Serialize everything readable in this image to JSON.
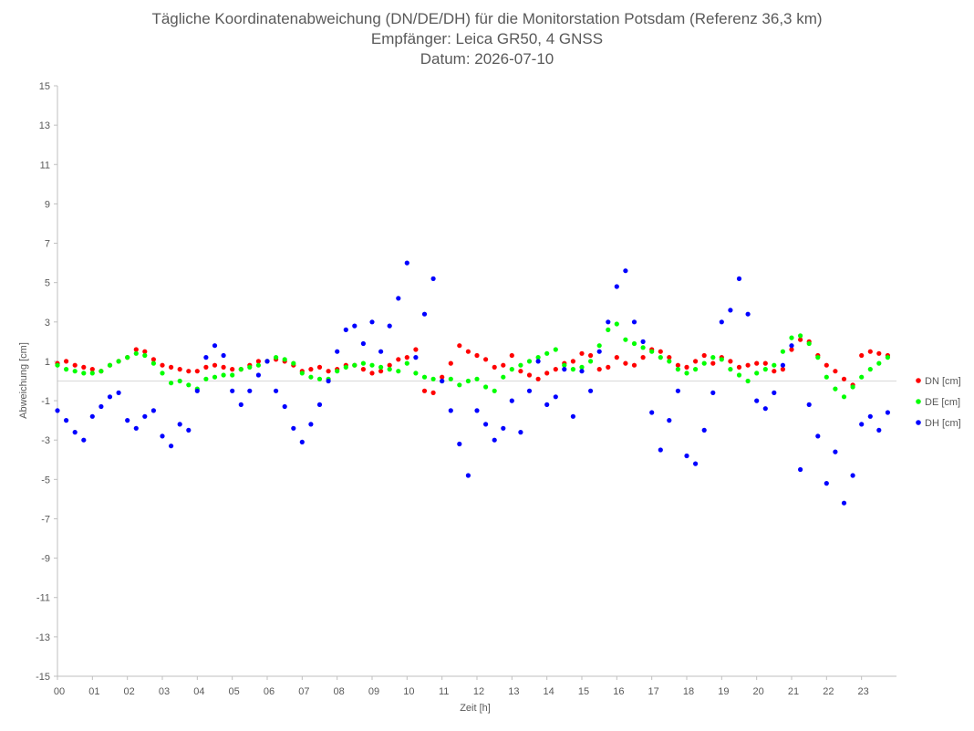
{
  "chart_data": {
    "type": "scatter",
    "title": [
      "Tägliche Koordinatenabweichung (DN/DE/DH) für die Monitorstation Potsdam (Referenz 36,3 km)",
      "Empfänger: Leica GR50, 4 GNSS",
      "Datum: 2026-07-10"
    ],
    "xlabel": "Zeit [h]",
    "ylabel": "Abweichung [cm]",
    "xlim": [
      0,
      24
    ],
    "ylim": [
      -15,
      15
    ],
    "x_tick_labels": [
      "00",
      "01",
      "02",
      "03",
      "04",
      "05",
      "06",
      "07",
      "08",
      "09",
      "10",
      "11",
      "12",
      "13",
      "14",
      "15",
      "16",
      "17",
      "18",
      "19",
      "20",
      "21",
      "22",
      "23"
    ],
    "y_tick_labels": [
      "15",
      "13",
      "11",
      "9",
      "7",
      "5",
      "3",
      "1",
      "-1",
      "-3",
      "-5",
      "-7",
      "-9",
      "-11",
      "-13",
      "-15"
    ],
    "grid": false,
    "legend_position": "right",
    "series": [
      {
        "name": "DN [cm]",
        "color": "#ff0000",
        "x": [
          0.0,
          0.25,
          0.5,
          0.75,
          1.0,
          1.25,
          1.5,
          1.75,
          2.0,
          2.25,
          2.5,
          2.75,
          3.0,
          3.25,
          3.5,
          3.75,
          4.0,
          4.25,
          4.5,
          4.75,
          5.0,
          5.25,
          5.5,
          5.75,
          6.0,
          6.25,
          6.5,
          6.75,
          7.0,
          7.25,
          7.5,
          7.75,
          8.0,
          8.25,
          8.5,
          8.75,
          9.0,
          9.25,
          9.5,
          9.75,
          10.0,
          10.25,
          10.5,
          10.75,
          11.0,
          11.25,
          11.5,
          11.75,
          12.0,
          12.25,
          12.5,
          12.75,
          13.0,
          13.25,
          13.5,
          13.75,
          14.0,
          14.25,
          14.5,
          14.75,
          15.0,
          15.25,
          15.5,
          15.75,
          16.0,
          16.25,
          16.5,
          16.75,
          17.0,
          17.25,
          17.5,
          17.75,
          18.0,
          18.25,
          18.5,
          18.75,
          19.0,
          19.25,
          19.5,
          19.75,
          20.0,
          20.25,
          20.5,
          20.75,
          21.0,
          21.25,
          21.5,
          21.75,
          22.0,
          22.25,
          22.5,
          22.75,
          23.0,
          23.25,
          23.5,
          23.75
        ],
        "values": [
          0.9,
          1.0,
          0.8,
          0.7,
          0.6,
          0.5,
          0.8,
          1.0,
          1.2,
          1.6,
          1.5,
          1.1,
          0.8,
          0.7,
          0.6,
          0.5,
          0.5,
          0.7,
          0.8,
          0.7,
          0.6,
          0.6,
          0.8,
          1.0,
          1.0,
          1.1,
          1.0,
          0.8,
          0.5,
          0.6,
          0.7,
          0.5,
          0.6,
          0.8,
          0.8,
          0.6,
          0.4,
          0.5,
          0.8,
          1.1,
          1.2,
          1.6,
          -0.5,
          -0.6,
          0.2,
          0.9,
          1.8,
          1.5,
          1.3,
          1.1,
          0.7,
          0.8,
          1.3,
          0.5,
          0.3,
          0.1,
          0.4,
          0.6,
          0.9,
          1.0,
          1.4,
          1.3,
          0.6,
          0.7,
          1.2,
          0.9,
          0.8,
          1.2,
          1.6,
          1.5,
          1.2,
          0.8,
          0.7,
          1.0,
          1.3,
          0.9,
          1.2,
          1.0,
          0.7,
          0.8,
          0.9,
          0.9,
          0.5,
          0.6,
          1.6,
          2.1,
          2.0,
          1.3,
          0.8,
          0.5,
          0.1,
          -0.2,
          1.3,
          1.5,
          1.4,
          1.3
        ]
      },
      {
        "name": "DE [cm]",
        "color": "#00ff00",
        "x": [
          0.0,
          0.25,
          0.5,
          0.75,
          1.0,
          1.25,
          1.5,
          1.75,
          2.0,
          2.25,
          2.5,
          2.75,
          3.0,
          3.25,
          3.5,
          3.75,
          4.0,
          4.25,
          4.5,
          4.75,
          5.0,
          5.25,
          5.5,
          5.75,
          6.0,
          6.25,
          6.5,
          6.75,
          7.0,
          7.25,
          7.5,
          7.75,
          8.0,
          8.25,
          8.5,
          8.75,
          9.0,
          9.25,
          9.5,
          9.75,
          10.0,
          10.25,
          10.5,
          10.75,
          11.0,
          11.25,
          11.5,
          11.75,
          12.0,
          12.25,
          12.5,
          12.75,
          13.0,
          13.25,
          13.5,
          13.75,
          14.0,
          14.25,
          14.5,
          14.75,
          15.0,
          15.25,
          15.5,
          15.75,
          16.0,
          16.25,
          16.5,
          16.75,
          17.0,
          17.25,
          17.5,
          17.75,
          18.0,
          18.25,
          18.5,
          18.75,
          19.0,
          19.25,
          19.5,
          19.75,
          20.0,
          20.25,
          20.5,
          20.75,
          21.0,
          21.25,
          21.5,
          21.75,
          22.0,
          22.25,
          22.5,
          22.75,
          23.0,
          23.25,
          23.5,
          23.75
        ],
        "values": [
          0.8,
          0.6,
          0.5,
          0.4,
          0.4,
          0.5,
          0.8,
          1.0,
          1.2,
          1.4,
          1.3,
          0.9,
          0.4,
          -0.1,
          0.0,
          -0.2,
          -0.4,
          0.1,
          0.2,
          0.3,
          0.3,
          0.6,
          0.7,
          0.8,
          1.0,
          1.2,
          1.1,
          0.9,
          0.4,
          0.2,
          0.1,
          0.1,
          0.5,
          0.7,
          0.8,
          0.9,
          0.8,
          0.7,
          0.6,
          0.5,
          0.9,
          0.4,
          0.2,
          0.1,
          0.0,
          0.1,
          -0.2,
          0.0,
          0.1,
          -0.3,
          -0.5,
          0.2,
          0.6,
          0.8,
          1.0,
          1.2,
          1.4,
          1.6,
          0.8,
          0.6,
          0.7,
          1.0,
          1.8,
          2.6,
          2.9,
          2.1,
          1.9,
          1.7,
          1.5,
          1.2,
          1.0,
          0.6,
          0.4,
          0.6,
          0.9,
          1.2,
          1.1,
          0.6,
          0.3,
          0.0,
          0.4,
          0.6,
          0.8,
          1.5,
          2.2,
          2.3,
          1.9,
          1.2,
          0.2,
          -0.4,
          -0.8,
          -0.3,
          0.2,
          0.6,
          0.9,
          1.2
        ]
      },
      {
        "name": "DH [cm]",
        "color": "#0000ff",
        "x": [
          0.0,
          0.25,
          0.5,
          0.75,
          1.0,
          1.25,
          1.5,
          1.75,
          2.0,
          2.25,
          2.5,
          2.75,
          3.0,
          3.25,
          3.5,
          3.75,
          4.0,
          4.25,
          4.5,
          4.75,
          5.0,
          5.25,
          5.5,
          5.75,
          6.0,
          6.25,
          6.5,
          6.75,
          7.0,
          7.25,
          7.5,
          7.75,
          8.0,
          8.25,
          8.5,
          8.75,
          9.0,
          9.25,
          9.5,
          9.75,
          10.0,
          10.25,
          10.5,
          10.75,
          11.0,
          11.25,
          11.5,
          11.75,
          12.0,
          12.25,
          12.5,
          12.75,
          13.0,
          13.25,
          13.5,
          13.75,
          14.0,
          14.25,
          14.5,
          14.75,
          15.0,
          15.25,
          15.5,
          15.75,
          16.0,
          16.25,
          16.5,
          16.75,
          17.0,
          17.25,
          17.5,
          17.75,
          18.0,
          18.25,
          18.5,
          18.75,
          19.0,
          19.25,
          19.5,
          19.75,
          20.0,
          20.25,
          20.5,
          20.75,
          21.0,
          21.25,
          21.5,
          21.75,
          22.0,
          22.25,
          22.5,
          22.75,
          23.0,
          23.25,
          23.5,
          23.75
        ],
        "values": [
          -1.5,
          -2.0,
          -2.6,
          -3.0,
          -1.8,
          -1.3,
          -0.8,
          -0.6,
          -2.0,
          -2.4,
          -1.8,
          -1.5,
          -2.8,
          -3.3,
          -2.2,
          -2.5,
          -0.5,
          1.2,
          1.8,
          1.3,
          -0.5,
          -1.2,
          -0.5,
          0.3,
          1.0,
          -0.5,
          -1.3,
          -2.4,
          -3.1,
          -2.2,
          -1.2,
          0.0,
          1.5,
          2.6,
          2.8,
          1.9,
          3.0,
          1.5,
          2.8,
          4.2,
          6.0,
          1.2,
          3.4,
          5.2,
          0.0,
          -1.5,
          -3.2,
          -4.8,
          -1.5,
          -2.2,
          -3.0,
          -2.4,
          -1.0,
          -2.6,
          -0.5,
          1.0,
          -1.2,
          -0.8,
          0.6,
          -1.8,
          0.5,
          -0.5,
          1.5,
          3.0,
          4.8,
          5.6,
          3.0,
          2.0,
          -1.6,
          -3.5,
          -2.0,
          -0.5,
          -3.8,
          -4.2,
          -2.5,
          -0.6,
          3.0,
          3.6,
          5.2,
          3.4,
          -1.0,
          -1.4,
          -0.6,
          0.8,
          1.8,
          -4.5,
          -1.2,
          -2.8,
          -5.2,
          -3.6,
          -6.2,
          -4.8,
          -2.2,
          -1.8,
          -2.5,
          -1.6
        ]
      }
    ]
  }
}
